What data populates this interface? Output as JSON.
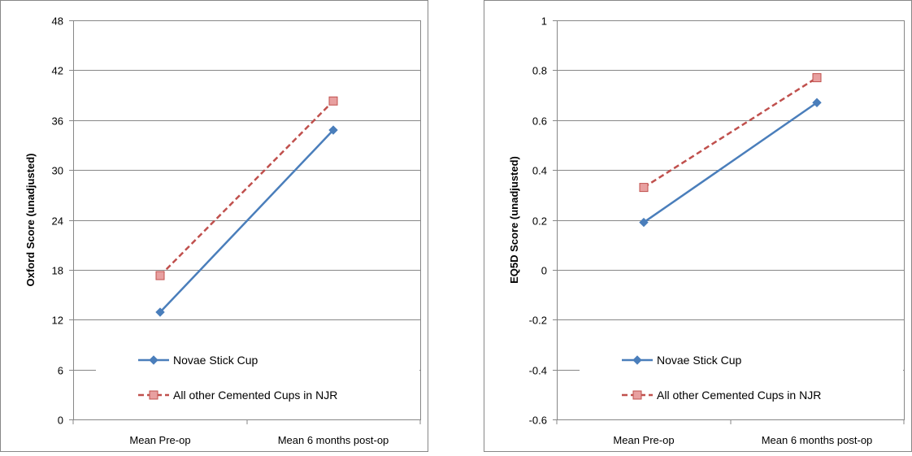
{
  "colors": {
    "series_solid": "#4a7ebb",
    "series_dashed": "#c0504d",
    "marker_fill": "#e8a0a0",
    "grid": "#878787"
  },
  "chart_data": [
    {
      "type": "line",
      "categories": [
        "Mean Pre-op",
        "Mean 6 months post-op"
      ],
      "ylabel": "Oxford Score (unadjusted)",
      "ylim": [
        0,
        48
      ],
      "yticks": [
        "0",
        "6",
        "12",
        "18",
        "24",
        "30",
        "36",
        "42",
        "48"
      ],
      "grid": true,
      "legend_position": "inside-bottom-center",
      "series": [
        {
          "name": "Novae Stick Cup",
          "values": [
            12.9,
            34.8
          ],
          "marker": "diamond",
          "style": "solid"
        },
        {
          "name": "All other Cemented Cups in NJR",
          "values": [
            17.3,
            38.3
          ],
          "marker": "square",
          "style": "dashed"
        }
      ]
    },
    {
      "type": "line",
      "categories": [
        "Mean Pre-op",
        "Mean 6 months post-op"
      ],
      "ylabel": "EQ5D Score (unadjusted)",
      "ylim": [
        -0.6,
        1
      ],
      "yticks": [
        "-0.6",
        "-0.4",
        "-0.2",
        "0",
        "0.2",
        "0.4",
        "0.6",
        "0.8",
        "1"
      ],
      "grid": true,
      "legend_position": "inside-bottom-center",
      "series": [
        {
          "name": "Novae Stick Cup",
          "values": [
            0.19,
            0.67
          ],
          "marker": "diamond",
          "style": "solid"
        },
        {
          "name": "All other Cemented Cups in NJR",
          "values": [
            0.33,
            0.77
          ],
          "marker": "square",
          "style": "dashed"
        }
      ]
    }
  ]
}
